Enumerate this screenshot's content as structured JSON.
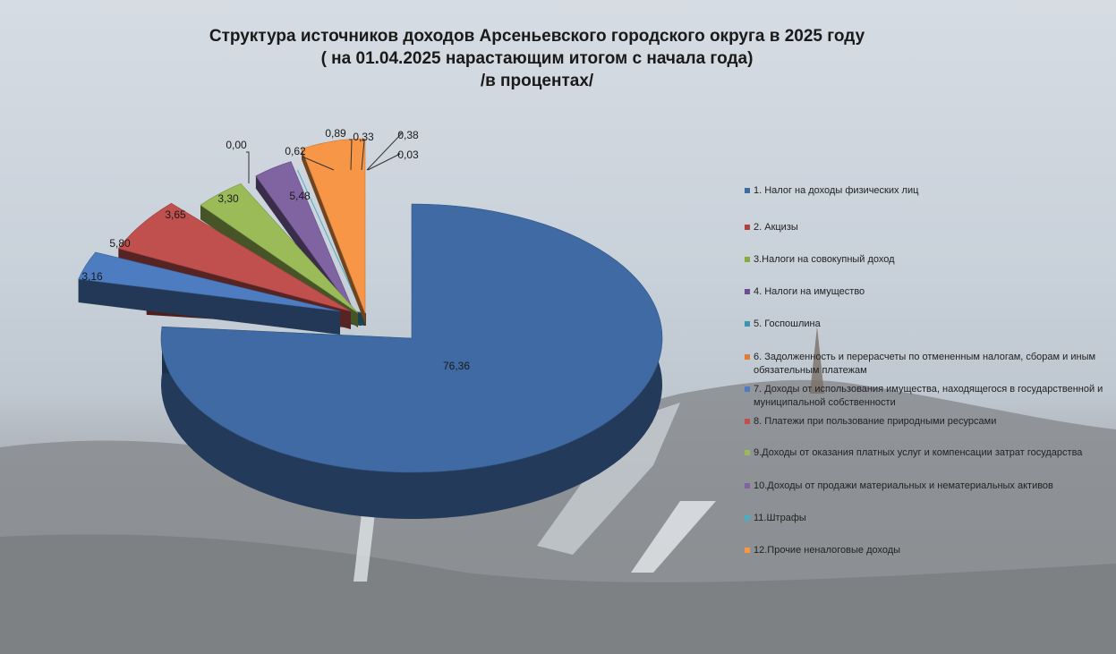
{
  "chart_data": {
    "type": "pie",
    "title_lines": [
      "Структура источников доходов Арсеньевского городского округа в 2025 году",
      "( на 01.04.2025 нарастающим итогом с начала года)",
      "/в процентах/"
    ],
    "legend_position": "right",
    "slices": [
      {
        "name": "1. Налог на  доходы физических лиц",
        "value": 76.36,
        "label": "76,36",
        "color": "#3f6aa3"
      },
      {
        "name": "2. Акцизы",
        "value": 0.62,
        "label": "0,62",
        "color": "#b0413c"
      },
      {
        "name": "3.Налоги на совокупный доход",
        "value": 0.89,
        "label": "0,89",
        "color": "#8aaa3e"
      },
      {
        "name": "4. Налоги на имущество",
        "value": 0.33,
        "label": "0,33",
        "color": "#6a4f8f"
      },
      {
        "name": "5. Госпошлина",
        "value": 0.38,
        "label": "0,38",
        "color": "#3c97ae"
      },
      {
        "name": "6. Задолженность и перерасчеты по отмененным налогам, сборам и иным обязательным платежам",
        "value": 0.03,
        "label": "0,03",
        "color": "#dc7d3b"
      },
      {
        "name": "7. Доходы от использования имущества, находящегося в государственной и муниципальной собственности",
        "value": 3.16,
        "label": "3,16",
        "color": "#4d7cc0"
      },
      {
        "name": "8. Платежи при пользование природными ресурсами",
        "value": 5.8,
        "label": "5,80",
        "color": "#c0504d"
      },
      {
        "name": "9.Доходы от оказания платных услуг и компенсации затрат государства",
        "value": 3.65,
        "label": "3,65",
        "color": "#9bbb59"
      },
      {
        "name": "10.Доходы от продажи материальных и нематериальных активов",
        "value": 3.3,
        "label": "3,30",
        "color": "#8064a2"
      },
      {
        "name": "11.Штрафы",
        "value": 0.0,
        "label": "0,00",
        "color": "#4bacc6"
      },
      {
        "name": "12.Прочие неналоговые доходы",
        "value": 5.48,
        "label": "5,48",
        "color": "#f79646"
      }
    ]
  }
}
